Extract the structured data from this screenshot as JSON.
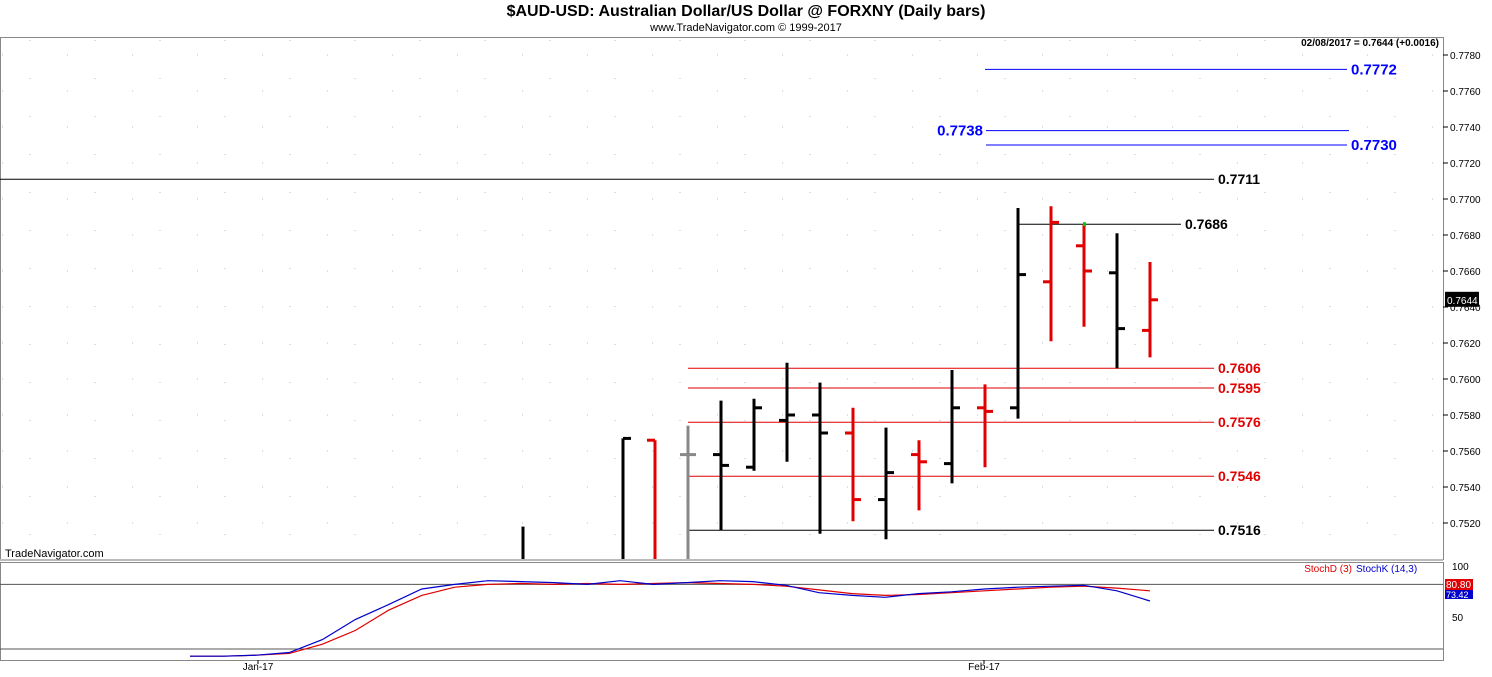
{
  "header": {
    "title": "$AUD-USD:  Australian Dollar/US Dollar @ FORXNY  (Daily bars)",
    "subtitle": "www.TradeNavigator.com © 1999-2017"
  },
  "watermark": "TradeNavigator.com",
  "last_info": "02/08/2017 = 0.7644 (+0.0016)",
  "last_price_tag": "0.7644",
  "colors": {
    "up": "#000000",
    "down": "#e00000",
    "blue_level": "#0000ff",
    "red_level": "#e00000",
    "stoch_d": "#e00000",
    "stoch_k": "#0000cc",
    "grey_bar": "#888888",
    "green_tick": "#00cc00"
  },
  "chart_data": [
    {
      "type": "ohlc",
      "title": "$AUD-USD:  Australian Dollar/US Dollar @ FORXNY  (Daily bars)",
      "ylim": [
        0.75,
        0.779
      ],
      "y_ticks": [
        "0.7520",
        "0.7540",
        "0.7560",
        "0.7580",
        "0.7600",
        "0.7620",
        "0.7640",
        "0.7660",
        "0.7680",
        "0.7700",
        "0.7720",
        "0.7740",
        "0.7760",
        "0.7780"
      ],
      "x_ticks": [
        "Jan-17",
        "Feb-17"
      ],
      "bars": [
        {
          "o": 0.75,
          "h": 0.7518,
          "l": 0.75,
          "c": 0.75,
          "color": "up"
        },
        {
          "o": 0.75,
          "h": 0.7567,
          "l": 0.75,
          "c": 0.7567,
          "color": "up"
        },
        {
          "o": 0.7566,
          "h": 0.7566,
          "l": 0.75,
          "c": 0.75,
          "color": "down"
        },
        {
          "o": 0.7558,
          "h": 0.7574,
          "l": 0.75,
          "c": 0.7558,
          "color": "grey"
        },
        {
          "o": 0.7558,
          "h": 0.7588,
          "l": 0.7516,
          "c": 0.7552,
          "color": "up"
        },
        {
          "o": 0.7551,
          "h": 0.7589,
          "l": 0.7549,
          "c": 0.7584,
          "color": "up"
        },
        {
          "o": 0.7577,
          "h": 0.7609,
          "l": 0.7554,
          "c": 0.758,
          "color": "up"
        },
        {
          "o": 0.758,
          "h": 0.7598,
          "l": 0.7514,
          "c": 0.757,
          "color": "up"
        },
        {
          "o": 0.757,
          "h": 0.7584,
          "l": 0.7521,
          "c": 0.7533,
          "color": "down"
        },
        {
          "o": 0.7533,
          "h": 0.7573,
          "l": 0.7511,
          "c": 0.7548,
          "color": "up"
        },
        {
          "o": 0.7558,
          "h": 0.7566,
          "l": 0.7527,
          "c": 0.7554,
          "color": "down"
        },
        {
          "o": 0.7553,
          "h": 0.7605,
          "l": 0.7542,
          "c": 0.7584,
          "color": "up"
        },
        {
          "o": 0.7584,
          "h": 0.7597,
          "l": 0.7551,
          "c": 0.7582,
          "color": "down"
        },
        {
          "o": 0.7584,
          "h": 0.7695,
          "l": 0.7578,
          "c": 0.7658,
          "color": "up"
        },
        {
          "o": 0.7654,
          "h": 0.7696,
          "l": 0.7621,
          "c": 0.7687,
          "color": "down"
        },
        {
          "o": 0.7674,
          "h": 0.7686,
          "l": 0.7629,
          "c": 0.766,
          "color": "down"
        },
        {
          "o": 0.7659,
          "h": 0.7681,
          "l": 0.7606,
          "c": 0.7628,
          "color": "up"
        },
        {
          "o": 0.7627,
          "h": 0.7665,
          "l": 0.7612,
          "c": 0.7644,
          "color": "down"
        }
      ],
      "levels": [
        {
          "value": 0.7772,
          "label": "0.7772",
          "color": "blue_level"
        },
        {
          "value": 0.7738,
          "label": "0.7738",
          "color": "blue_level"
        },
        {
          "value": 0.773,
          "label": "0.7730",
          "color": "blue_level"
        },
        {
          "value": 0.7711,
          "label": "0.7711",
          "color": "up"
        },
        {
          "value": 0.7686,
          "label": "0.7686",
          "color": "up"
        },
        {
          "value": 0.7606,
          "label": "0.7606",
          "color": "red_level"
        },
        {
          "value": 0.7595,
          "label": "0.7595",
          "color": "red_level"
        },
        {
          "value": 0.7576,
          "label": "0.7576",
          "color": "red_level"
        },
        {
          "value": 0.7546,
          "label": "0.7546",
          "color": "red_level"
        },
        {
          "value": 0.7516,
          "label": "0.7516",
          "color": "up"
        }
      ]
    },
    {
      "type": "line",
      "ylim": [
        0,
        100
      ],
      "y_ticks": [
        "100",
        "50"
      ],
      "reference_line": 80,
      "legend": [
        "StochD (3)",
        "StochK (14,3)"
      ],
      "value_tags": [
        "80.80",
        "73.42"
      ],
      "series": [
        {
          "name": "StochD (3)",
          "x": [
            0,
            1,
            2,
            3,
            4,
            5,
            6,
            7,
            8,
            9,
            10,
            11,
            12,
            13,
            14,
            15,
            16,
            17,
            18,
            19,
            20,
            21,
            22,
            23,
            24,
            25,
            26,
            27,
            28,
            29
          ],
          "values": [
            2,
            2,
            3,
            5,
            15,
            30,
            52,
            68,
            77,
            80,
            81,
            80,
            81,
            80,
            81,
            82,
            81,
            80,
            78,
            74,
            70,
            68,
            69,
            71,
            73,
            75,
            77,
            78,
            76,
            73
          ]
        },
        {
          "name": "StochK (14,3)",
          "x": [
            0,
            1,
            2,
            3,
            4,
            5,
            6,
            7,
            8,
            9,
            10,
            11,
            12,
            13,
            14,
            15,
            16,
            17,
            18,
            19,
            20,
            21,
            22,
            23,
            24,
            25,
            26,
            27,
            28,
            29
          ],
          "values": [
            2,
            2,
            3,
            6,
            20,
            42,
            58,
            75,
            80,
            84,
            83,
            82,
            80,
            84,
            80,
            82,
            84,
            83,
            79,
            71,
            68,
            66,
            70,
            72,
            75,
            77,
            78,
            79,
            73,
            62
          ]
        }
      ]
    }
  ]
}
